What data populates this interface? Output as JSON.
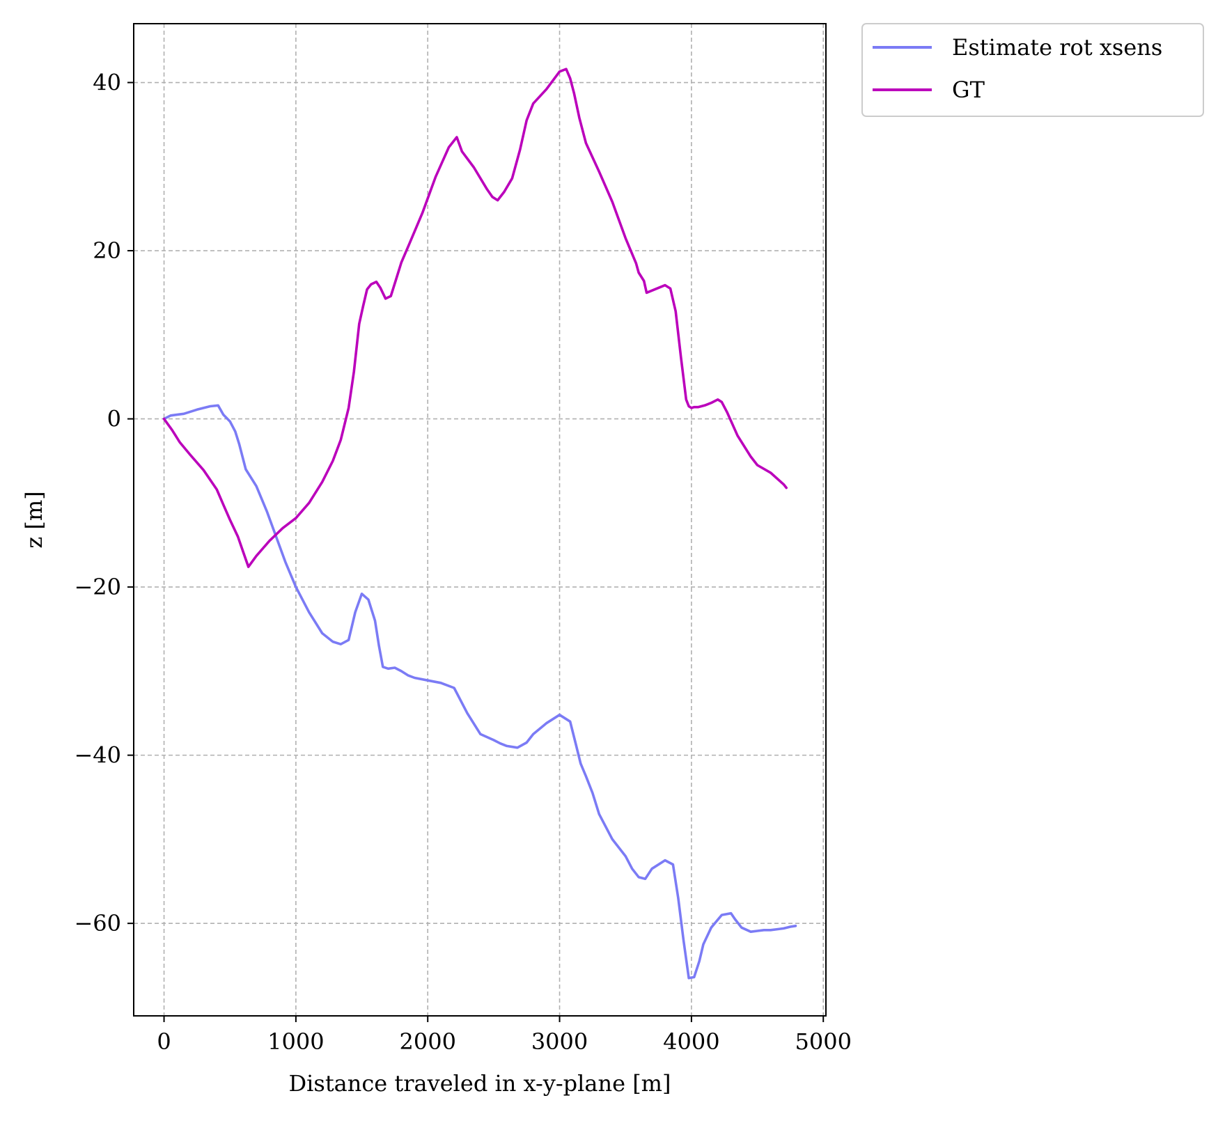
{
  "chart_data": {
    "type": "line",
    "title": "",
    "xlabel": "Distance traveled in x-y-plane [m]",
    "ylabel": "z [m]",
    "xlim": [
      -230,
      5020
    ],
    "ylim": [
      -71,
      47
    ],
    "xticks": [
      0,
      1000,
      2000,
      3000,
      4000,
      5000
    ],
    "yticks": [
      -60,
      -40,
      -20,
      0,
      20,
      40
    ],
    "xtick_labels": [
      "0",
      "1000",
      "2000",
      "3000",
      "4000",
      "5000"
    ],
    "ytick_labels": [
      "−60",
      "−40",
      "−20",
      "0",
      "20",
      "40"
    ],
    "grid": true,
    "legend_position": "outside-top-right",
    "series": [
      {
        "name": "Estimate rot xsens",
        "color": "#7b7bf5",
        "x": [
          0,
          50,
          150,
          250,
          350,
          410,
          450,
          500,
          540,
          570,
          620,
          700,
          780,
          850,
          920,
          1000,
          1100,
          1200,
          1280,
          1340,
          1400,
          1450,
          1500,
          1550,
          1600,
          1630,
          1660,
          1700,
          1750,
          1800,
          1850,
          1900,
          2000,
          2100,
          2200,
          2250,
          2300,
          2400,
          2500,
          2550,
          2600,
          2680,
          2750,
          2800,
          2900,
          3000,
          3080,
          3120,
          3160,
          3200,
          3250,
          3300,
          3400,
          3500,
          3550,
          3600,
          3650,
          3700,
          3800,
          3860,
          3900,
          3940,
          3980,
          4020,
          4060,
          4090,
          4150,
          4230,
          4300,
          4330,
          4380,
          4450,
          4500,
          4550,
          4600,
          4650,
          4700,
          4750,
          4790
        ],
        "y": [
          0,
          0.4,
          0.6,
          1.1,
          1.5,
          1.6,
          0.5,
          -0.3,
          -1.5,
          -3,
          -6,
          -8,
          -11,
          -14,
          -17,
          -20,
          -23,
          -25.5,
          -26.5,
          -26.8,
          -26.3,
          -23,
          -20.8,
          -21.5,
          -24,
          -27,
          -29.5,
          -29.7,
          -29.6,
          -30,
          -30.5,
          -30.8,
          -31.1,
          -31.4,
          -32,
          -33.5,
          -35,
          -37.5,
          -38.2,
          -38.6,
          -38.9,
          -39.1,
          -38.5,
          -37.5,
          -36.2,
          -35.2,
          -36,
          -38.5,
          -41,
          -42.5,
          -44.5,
          -47,
          -50,
          -52,
          -53.5,
          -54.5,
          -54.7,
          -53.5,
          -52.5,
          -53,
          -57,
          -62,
          -66.5,
          -66.4,
          -64.5,
          -62.5,
          -60.5,
          -59,
          -58.8,
          -59.5,
          -60.5,
          -61,
          -60.9,
          -60.8,
          -60.8,
          -60.7,
          -60.6,
          -60.4,
          -60.3
        ]
      },
      {
        "name": "GT",
        "color": "#bb00bb",
        "x": [
          0,
          60,
          120,
          200,
          300,
          400,
          450,
          500,
          560,
          600,
          640,
          700,
          800,
          900,
          1000,
          1100,
          1200,
          1280,
          1340,
          1400,
          1440,
          1480,
          1510,
          1540,
          1570,
          1610,
          1640,
          1680,
          1720,
          1760,
          1800,
          1860,
          1960,
          2060,
          2160,
          2220,
          2260,
          2350,
          2450,
          2490,
          2530,
          2580,
          2640,
          2700,
          2750,
          2800,
          2900,
          3000,
          3050,
          3080,
          3110,
          3150,
          3200,
          3300,
          3400,
          3500,
          3580,
          3600,
          3640,
          3660,
          3800,
          3840,
          3880,
          3920,
          3960,
          3980,
          4000,
          4020,
          4050,
          4100,
          4150,
          4200,
          4230,
          4270,
          4350,
          4450,
          4500,
          4600,
          4700,
          4720
        ],
        "y": [
          0,
          -1.3,
          -2.8,
          -4.3,
          -6.1,
          -8.4,
          -10.2,
          -12,
          -14,
          -15.8,
          -17.6,
          -16.3,
          -14.5,
          -13,
          -11.8,
          -10,
          -7.5,
          -5,
          -2.5,
          1.3,
          5.6,
          11.3,
          13.4,
          15.4,
          16,
          16.3,
          15.6,
          14.3,
          14.6,
          16.6,
          18.6,
          20.8,
          24.5,
          28.8,
          32.3,
          33.5,
          31.8,
          29.9,
          27.3,
          26.4,
          26,
          27,
          28.6,
          32,
          35.5,
          37.5,
          39.2,
          41.3,
          41.6,
          40.5,
          38.7,
          35.8,
          32.8,
          29.4,
          25.8,
          21.5,
          18.5,
          17.4,
          16.4,
          15,
          15.9,
          15.5,
          12.8,
          7.4,
          2.3,
          1.5,
          1.3,
          1.4,
          1.4,
          1.6,
          1.9,
          2.3,
          2,
          0.8,
          -2,
          -4.5,
          -5.5,
          -6.4,
          -7.8,
          -8.2
        ]
      }
    ]
  }
}
